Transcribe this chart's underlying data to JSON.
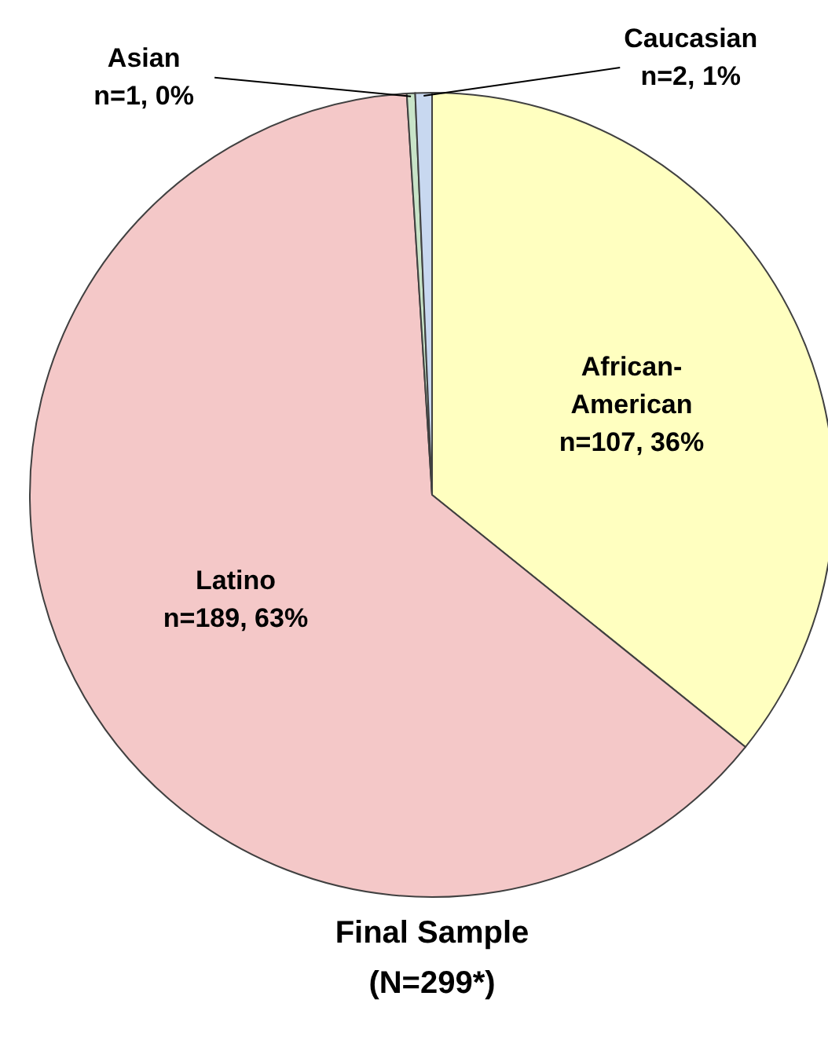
{
  "chart_data": {
    "type": "pie",
    "title": "Final Sample",
    "subtitle": "(N=299*)",
    "categories": [
      "African-American",
      "Latino",
      "Asian",
      "Caucasian"
    ],
    "values": [
      107,
      189,
      1,
      2
    ],
    "value_labels": [
      "n=107, 36%",
      "n=189, 63%",
      "n=1, 0%",
      "n=2, 1%"
    ],
    "colors": [
      "#ffffc0",
      "#f4c8c8",
      "#c8e4c8",
      "#c8d8f0"
    ]
  }
}
